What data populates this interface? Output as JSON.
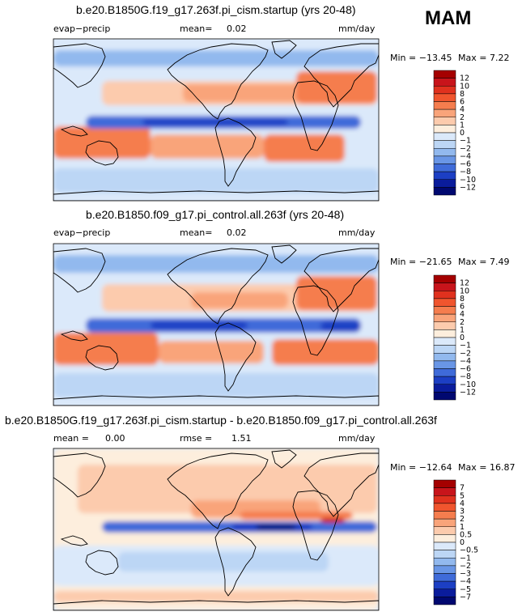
{
  "season": "MAM",
  "chart_data": [
    {
      "type": "heatmap",
      "title": "b.e20.B1850G.f19_g17.263f.pi_cism.startup (yrs 20-48)",
      "variable": "evap−precip",
      "mean_label": "mean=",
      "mean_value": "0.02",
      "units": "mm/day",
      "min_label": "Min = −13.45",
      "max_label": "Max =    7.22",
      "min": -13.45,
      "max": 7.22,
      "colorbar_levels": [
        "12",
        "10",
        "8",
        "6",
        "4",
        "2",
        "1",
        "0",
        "−1",
        "−2",
        "−4",
        "−6",
        "−8",
        "−10",
        "−12"
      ],
      "colorbar_colors": [
        "#a50000",
        "#c8141b",
        "#e0311e",
        "#f0552e",
        "#f57d4e",
        "#f9a47a",
        "#fccbad",
        "#fdeedd",
        "#dbe9fa",
        "#bcd6f5",
        "#92b9ee",
        "#6996e6",
        "#3f6bd9",
        "#1c3fc4",
        "#0a1c9c",
        "#000870"
      ]
    },
    {
      "type": "heatmap",
      "title": "b.e20.B1850.f09_g17.pi_control.all.263f (yrs 20-48)",
      "variable": "evap−precip",
      "mean_label": "mean=",
      "mean_value": "0.02",
      "units": "mm/day",
      "min_label": "Min = −21.65",
      "max_label": "Max =    7.49",
      "min": -21.65,
      "max": 7.49,
      "colorbar_levels": [
        "12",
        "10",
        "8",
        "6",
        "4",
        "2",
        "1",
        "0",
        "−1",
        "−2",
        "−4",
        "−6",
        "−8",
        "−10",
        "−12"
      ],
      "colorbar_colors": [
        "#a50000",
        "#c8141b",
        "#e0311e",
        "#f0552e",
        "#f57d4e",
        "#f9a47a",
        "#fccbad",
        "#fdeedd",
        "#dbe9fa",
        "#bcd6f5",
        "#92b9ee",
        "#6996e6",
        "#3f6bd9",
        "#1c3fc4",
        "#0a1c9c",
        "#000870"
      ]
    },
    {
      "type": "heatmap",
      "title": "b.e20.B1850G.f19_g17.263f.pi_cism.startup - b.e20.B1850.f09_g17.pi_control.all.263f",
      "mean_label": "mean =",
      "mean_value": "0.00",
      "rmse_label": "rmse =",
      "rmse_value": "1.51",
      "units": "mm/day",
      "min_label": "Min = −12.64",
      "max_label": "Max =  16.87",
      "min": -12.64,
      "max": 16.87,
      "colorbar_levels": [
        "7",
        "5",
        "4",
        "3",
        "2",
        "1",
        "0.5",
        "0",
        "−0.5",
        "−1",
        "−2",
        "−3",
        "−4",
        "−5",
        "−7"
      ],
      "colorbar_colors": [
        "#a50000",
        "#c8141b",
        "#e0311e",
        "#f0552e",
        "#f57d4e",
        "#f9a47a",
        "#fccbad",
        "#fdeedd",
        "#dbe9fa",
        "#bcd6f5",
        "#92b9ee",
        "#6996e6",
        "#3f6bd9",
        "#1c3fc4",
        "#0a1c9c",
        "#000870"
      ]
    }
  ]
}
